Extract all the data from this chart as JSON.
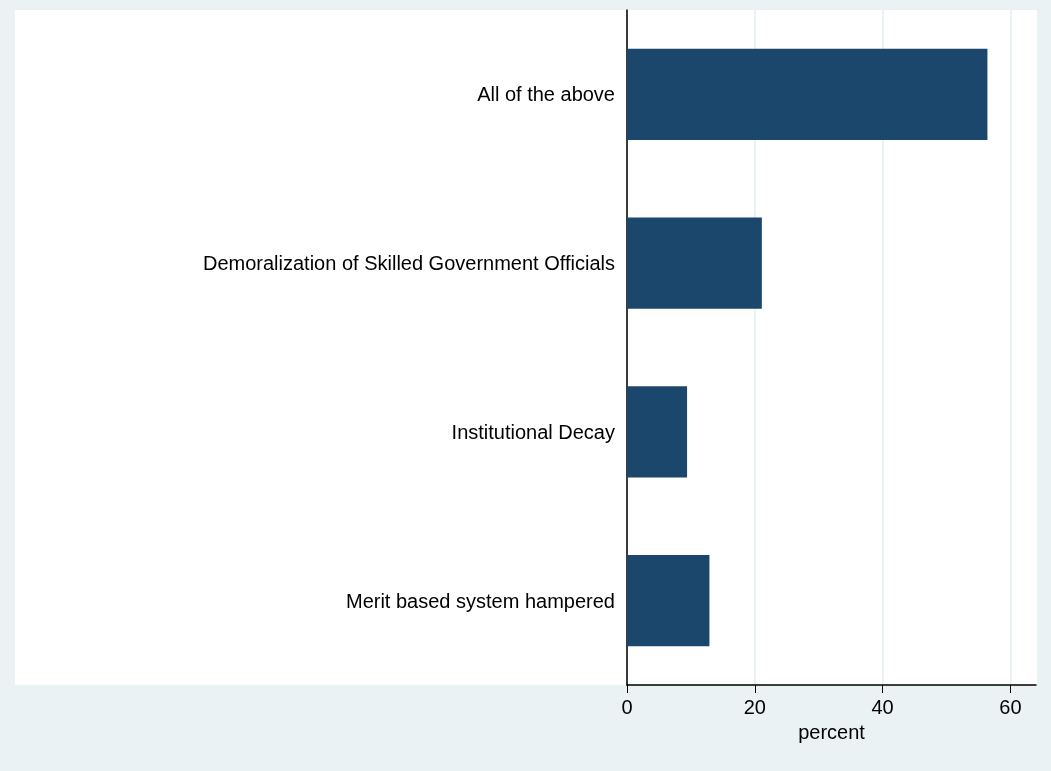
{
  "chart_data": {
    "type": "bar",
    "orientation": "horizontal",
    "categories": [
      "All of the above",
      "Demoralization of Skilled Government Officials",
      "Institutional Decay",
      "Merit based system hampered"
    ],
    "values": [
      56.4,
      21.1,
      9.4,
      12.9
    ],
    "color": "#1c476d",
    "xlabel": "percent",
    "xlim": [
      0,
      64
    ],
    "xticks": [
      0,
      20,
      40,
      60
    ],
    "grid": "x"
  }
}
